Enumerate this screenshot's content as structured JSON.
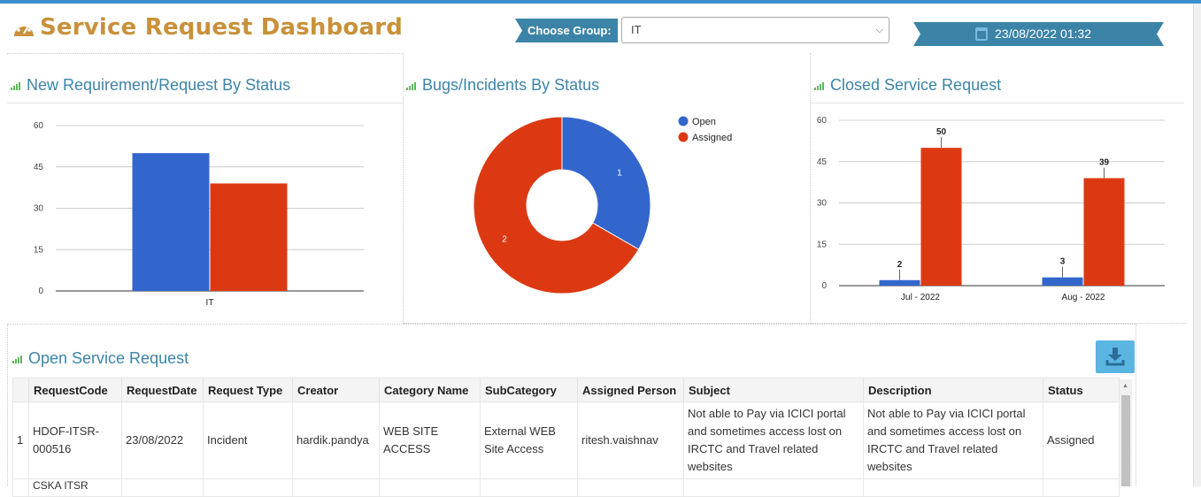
{
  "header": {
    "title": "Service Request Dashboard",
    "group_label": "Choose Group:",
    "group_value": "IT",
    "datetime": "23/08/2022 01:32"
  },
  "panels": {
    "new_requirement": "New Requirement/Request By Status",
    "bugs": "Bugs/Incidents By Status",
    "closed": "Closed Service Request",
    "open_requests": "Open Service Request"
  },
  "colors": {
    "blue": "#3366cc",
    "red": "#dc3912",
    "accent": "#3c84a7",
    "title": "#c8913a"
  },
  "chart_data": [
    {
      "type": "bar",
      "categories": [
        "IT"
      ],
      "series": [
        {
          "values": [
            50
          ]
        },
        {
          "values": [
            39
          ]
        }
      ],
      "ylim": [
        0,
        60
      ],
      "yticks": [
        0,
        15,
        30,
        45,
        60
      ]
    },
    {
      "type": "pie",
      "donut": true,
      "labels": [
        "Open",
        "Assigned"
      ],
      "values": [
        1,
        2
      ],
      "legend": "top-right"
    },
    {
      "type": "bar",
      "categories": [
        "Jul - 2022",
        "Aug - 2022"
      ],
      "series": [
        {
          "values": [
            2,
            3
          ]
        },
        {
          "values": [
            50,
            39
          ]
        }
      ],
      "ylim": [
        0,
        60
      ],
      "yticks": [
        0,
        15,
        30,
        45,
        60
      ],
      "data_labels": true
    }
  ],
  "table": {
    "columns": [
      "RequestCode",
      "RequestDate",
      "Request Type",
      "Creator",
      "Category Name",
      "SubCategory",
      "Assigned Person",
      "Subject",
      "Description",
      "Status"
    ],
    "rows": [
      {
        "index": "1",
        "code": "HDOF-ITSR-000516",
        "date": "23/08/2022",
        "type": "Incident",
        "creator": "hardik.pandya",
        "category": "WEB SITE ACCESS",
        "subcategory": "External WEB Site Access",
        "assigned": "ritesh.vaishnav",
        "subject": "Not able to Pay via ICICI portal and sometimes access lost on IRCTC and Travel related websites",
        "description": "Not able to Pay via ICICI portal and sometimes access lost on IRCTC and Travel related websites",
        "status": "Assigned"
      }
    ],
    "next_row_code": "CSKA ITSR"
  }
}
